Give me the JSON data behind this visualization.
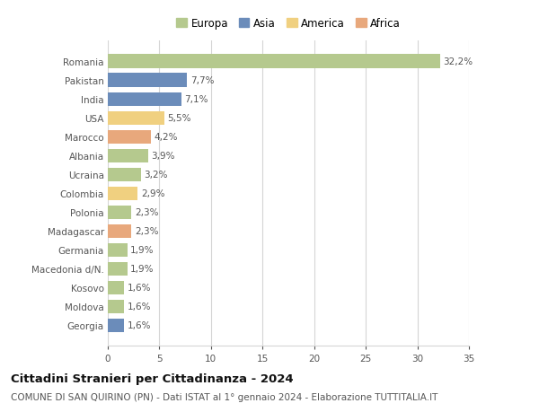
{
  "countries": [
    "Romania",
    "Pakistan",
    "India",
    "USA",
    "Marocco",
    "Albania",
    "Ucraina",
    "Colombia",
    "Polonia",
    "Madagascar",
    "Germania",
    "Macedonia d/N.",
    "Kosovo",
    "Moldova",
    "Georgia"
  ],
  "values": [
    32.2,
    7.7,
    7.1,
    5.5,
    4.2,
    3.9,
    3.2,
    2.9,
    2.3,
    2.3,
    1.9,
    1.9,
    1.6,
    1.6,
    1.6
  ],
  "labels": [
    "32,2%",
    "7,7%",
    "7,1%",
    "5,5%",
    "4,2%",
    "3,9%",
    "3,2%",
    "2,9%",
    "2,3%",
    "2,3%",
    "1,9%",
    "1,9%",
    "1,6%",
    "1,6%",
    "1,6%"
  ],
  "colors": [
    "#b5c98e",
    "#6b8cba",
    "#6b8cba",
    "#f0d080",
    "#e8a87c",
    "#b5c98e",
    "#b5c98e",
    "#f0d080",
    "#b5c98e",
    "#e8a87c",
    "#b5c98e",
    "#b5c98e",
    "#b5c98e",
    "#b5c98e",
    "#6b8cba"
  ],
  "legend_labels": [
    "Europa",
    "Asia",
    "America",
    "Africa"
  ],
  "legend_colors": [
    "#b5c98e",
    "#6b8cba",
    "#f0d080",
    "#e8a87c"
  ],
  "title": "Cittadini Stranieri per Cittadinanza - 2024",
  "subtitle": "COMUNE DI SAN QUIRINO (PN) - Dati ISTAT al 1° gennaio 2024 - Elaborazione TUTTITALIA.IT",
  "xlim": [
    0,
    35
  ],
  "xticks": [
    0,
    5,
    10,
    15,
    20,
    25,
    30,
    35
  ],
  "bg_color": "#ffffff",
  "grid_color": "#d5d5d5",
  "bar_height": 0.72,
  "title_fontsize": 9.5,
  "subtitle_fontsize": 7.5,
  "tick_fontsize": 7.5,
  "label_fontsize": 7.5,
  "legend_fontsize": 8.5
}
